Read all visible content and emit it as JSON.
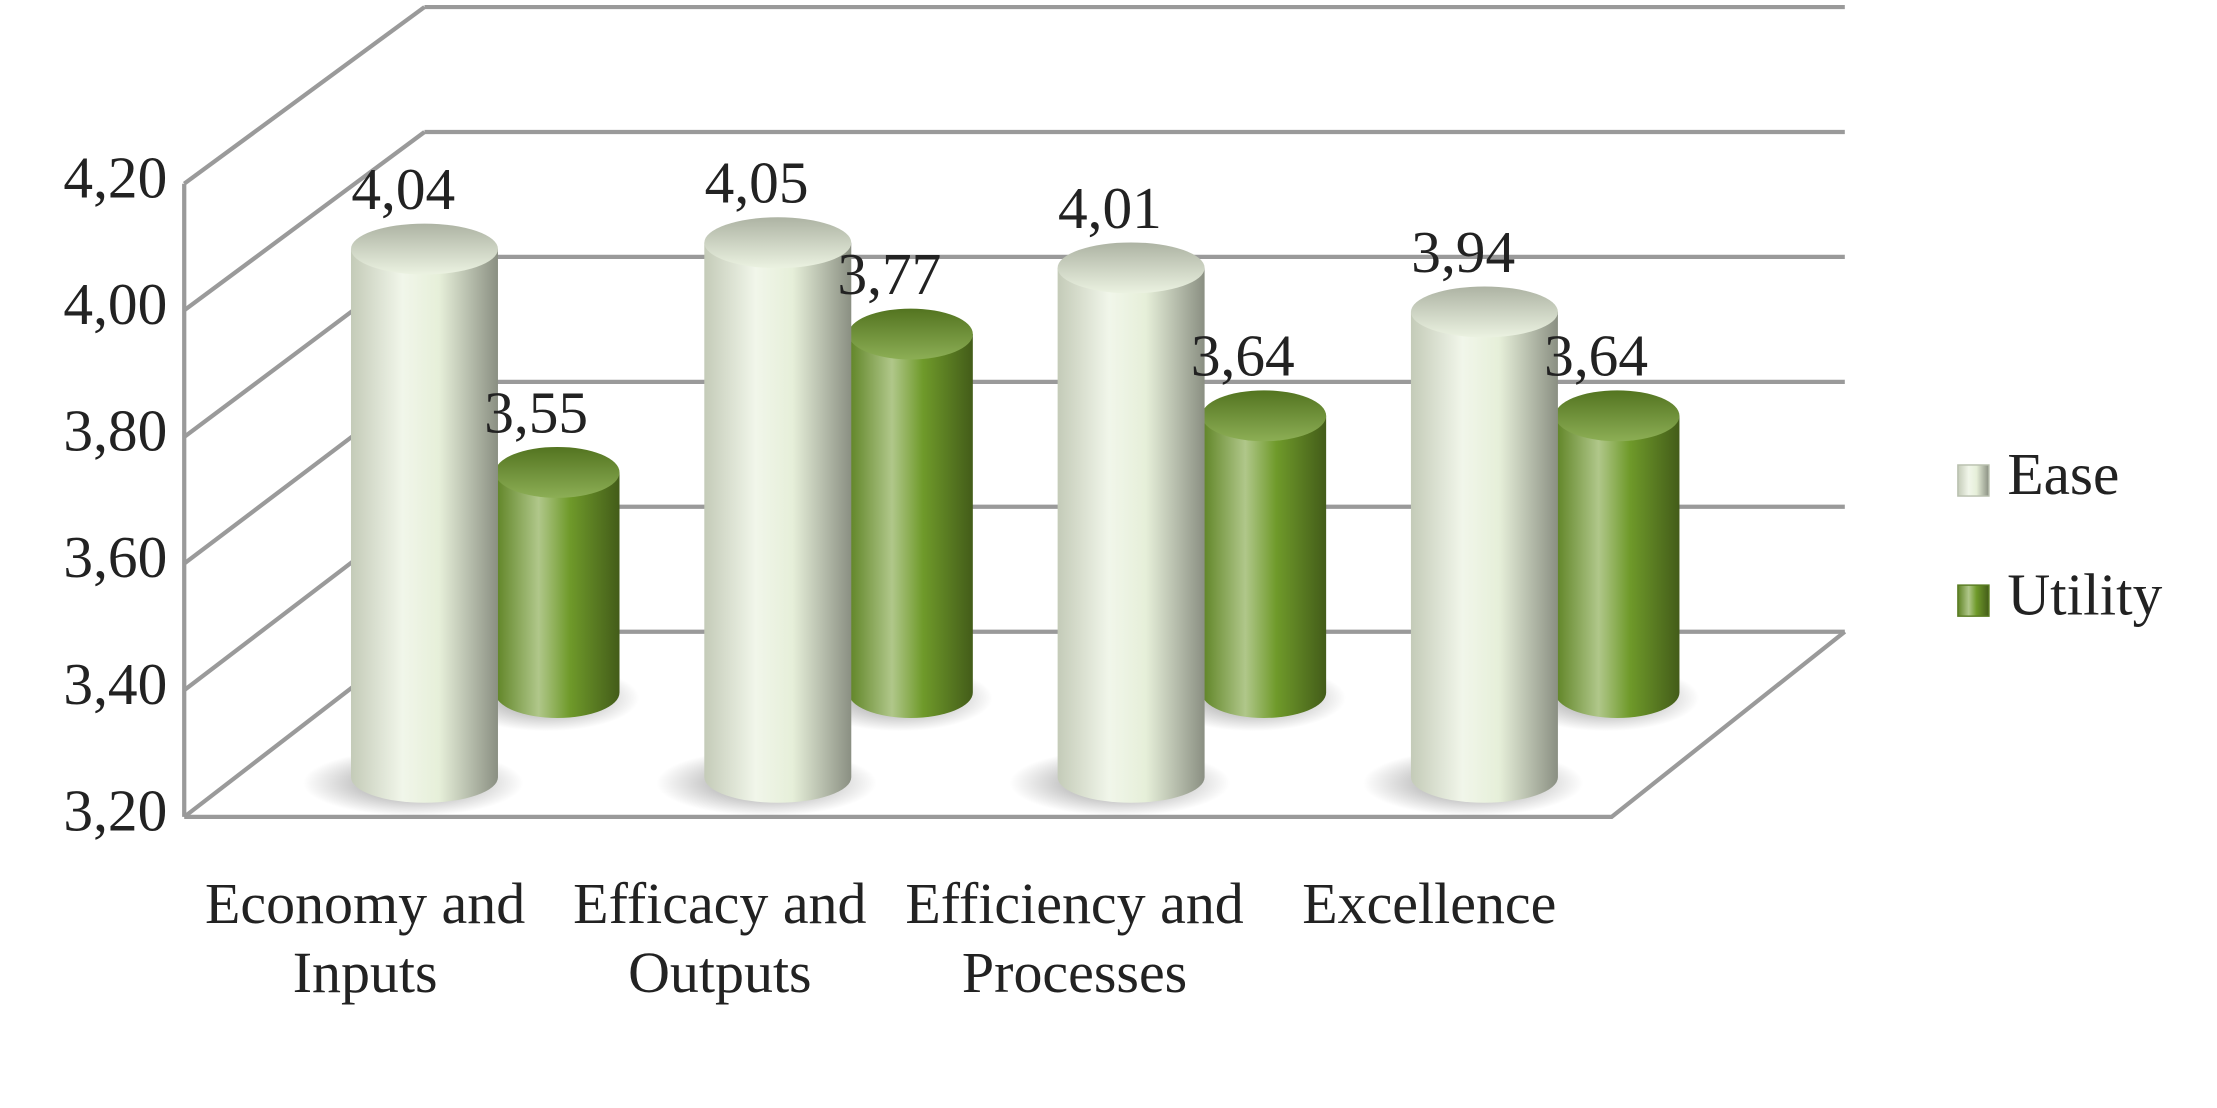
{
  "chart_data": {
    "type": "bar3d",
    "categories": [
      "Economy and Inputs",
      "Efficacy and Outputs",
      "Efficiency and Processes",
      "Excellence"
    ],
    "series": [
      {
        "name": "Ease",
        "color": "#e6efd9",
        "values": [
          4.04,
          4.05,
          4.01,
          3.94
        ],
        "value_labels": [
          "4,04",
          "4,05",
          "4,01",
          "3,94"
        ]
      },
      {
        "name": "Utility",
        "color": "#6f9a2a",
        "values": [
          3.55,
          3.77,
          3.64,
          3.64
        ],
        "value_labels": [
          "3,55",
          "3,77",
          "3,64",
          "3,64"
        ]
      }
    ],
    "ylim": [
      3.2,
      4.2
    ],
    "yticks": [
      {
        "value": 3.2,
        "label": "3,20"
      },
      {
        "value": 3.4,
        "label": "3,40"
      },
      {
        "value": 3.6,
        "label": "3,60"
      },
      {
        "value": 3.8,
        "label": "3,80"
      },
      {
        "value": 4.0,
        "label": "4,00"
      },
      {
        "value": 4.2,
        "label": "4,20"
      }
    ],
    "grid": true,
    "legend": "right"
  }
}
